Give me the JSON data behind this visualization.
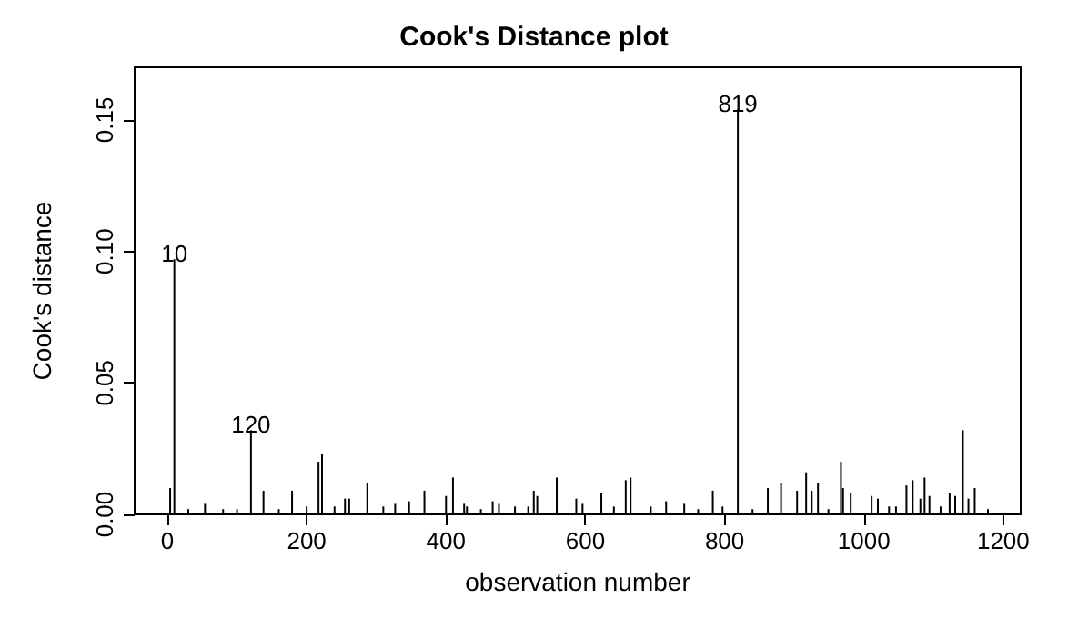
{
  "chart_data": {
    "type": "bar",
    "title": "Cook's Distance plot",
    "xlabel": "observation number",
    "ylabel": "Cook's distance",
    "x": [
      4,
      10,
      30,
      54,
      80,
      100,
      120,
      138,
      160,
      179,
      200,
      217,
      222,
      240,
      255,
      261,
      287,
      310,
      327,
      347,
      369,
      400,
      410,
      426,
      430,
      450,
      467,
      476,
      499,
      518,
      526,
      531,
      559,
      587,
      596,
      623,
      641,
      658,
      665,
      694,
      716,
      742,
      762,
      783,
      797,
      819,
      840,
      862,
      881,
      904,
      917,
      925,
      934,
      949,
      967,
      970,
      981,
      1011,
      1020,
      1036,
      1046,
      1061,
      1070,
      1081,
      1087,
      1094,
      1110,
      1123,
      1131,
      1142,
      1150,
      1159,
      1178
    ],
    "values": [
      0.01,
      0.097,
      0.002,
      0.004,
      0.002,
      0.002,
      0.032,
      0.009,
      0.002,
      0.009,
      0.003,
      0.02,
      0.023,
      0.003,
      0.006,
      0.006,
      0.012,
      0.003,
      0.004,
      0.005,
      0.009,
      0.007,
      0.014,
      0.004,
      0.003,
      0.002,
      0.005,
      0.004,
      0.003,
      0.003,
      0.009,
      0.007,
      0.014,
      0.006,
      0.004,
      0.008,
      0.003,
      0.013,
      0.014,
      0.003,
      0.005,
      0.004,
      0.002,
      0.009,
      0.003,
      0.154,
      0.002,
      0.01,
      0.012,
      0.009,
      0.016,
      0.009,
      0.012,
      0.002,
      0.02,
      0.01,
      0.008,
      0.007,
      0.006,
      0.003,
      0.003,
      0.011,
      0.013,
      0.006,
      0.014,
      0.007,
      0.003,
      0.008,
      0.007,
      0.032,
      0.006,
      0.01,
      0.002
    ],
    "color": "#000000",
    "xlim": [
      -47,
      1225
    ],
    "xticks": [
      0,
      200,
      400,
      600,
      800,
      1000,
      1200
    ],
    "ylim": [
      0,
      0.17
    ],
    "yticks": [
      {
        "value": 0,
        "label": "0.00"
      },
      {
        "value": 0.05,
        "label": "0.05"
      },
      {
        "value": 0.1,
        "label": "0.10"
      },
      {
        "value": 0.15,
        "label": "0.15"
      }
    ],
    "annotations": [
      {
        "text": "10",
        "x": 10,
        "y": 0.097
      },
      {
        "text": "120",
        "x": 120,
        "y": 0.032
      },
      {
        "text": "819",
        "x": 819,
        "y": 0.154
      }
    ],
    "grid": false
  }
}
